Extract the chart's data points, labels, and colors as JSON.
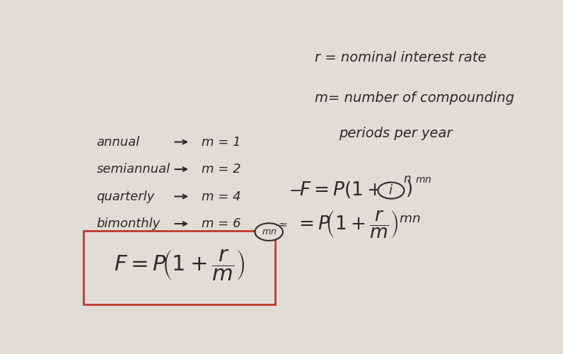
{
  "bg_color": "#e0ddd6",
  "text_color": "#2a2a2a",
  "title_r": "r = nominal interest rate",
  "title_m1": "m= number of compounding",
  "title_m2": "periods per year",
  "left_items": [
    [
      "annual",
      "m = 1"
    ],
    [
      "semiannual",
      "m = 2"
    ],
    [
      "quarterly",
      "m = 4"
    ],
    [
      "bimonthly",
      "m = 6"
    ]
  ],
  "box_color": "#c0392b",
  "font_size_main": 13,
  "font_size_formula": 22,
  "font_size_small": 11
}
